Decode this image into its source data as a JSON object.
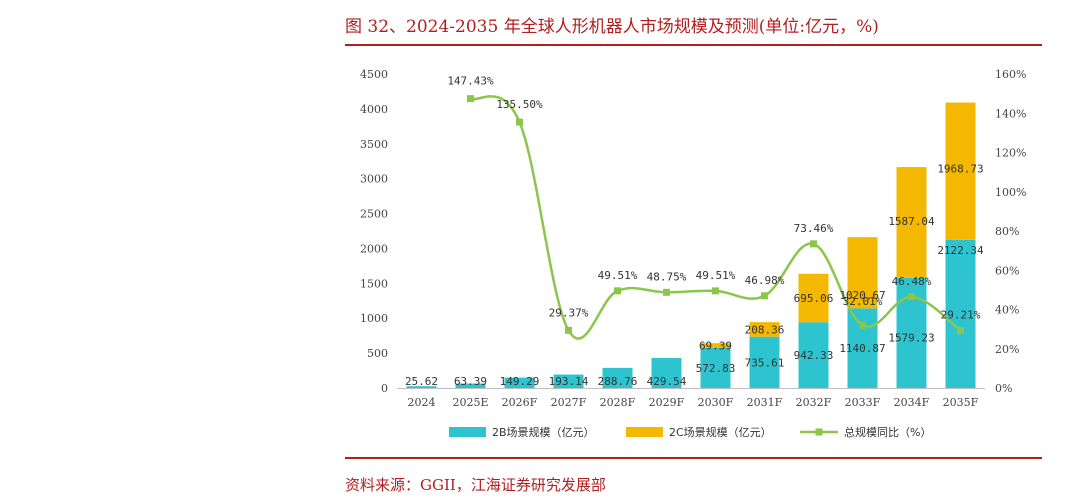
{
  "figure": {
    "title": "图 32、2024-2035 年全球人形机器人市场规模及预测(单位:亿元，%)",
    "source": "资料来源：GGII，江海证券研究发展部"
  },
  "chart_data": {
    "type": "bar",
    "stacked": true,
    "categories": [
      "2024",
      "2025E",
      "2026F",
      "2027F",
      "2028F",
      "2029F",
      "2030F",
      "2031F",
      "2032F",
      "2033F",
      "2034F",
      "2035F"
    ],
    "series": [
      {
        "name": "2B场景规模（亿元）",
        "type": "bar",
        "axis": "left",
        "color": "#2ec4cf",
        "values": [
          25.62,
          63.39,
          149.29,
          193.14,
          288.76,
          429.54,
          572.83,
          735.61,
          942.33,
          1140.87,
          1579.23,
          2122.34
        ],
        "labels": [
          "25.62",
          "63.39",
          "149.29",
          "193.14",
          "288.76",
          "429.54",
          "572.83",
          "735.61",
          "942.33",
          "1140.87",
          "1579.23",
          "2122.34"
        ]
      },
      {
        "name": "2C场景规模（亿元）",
        "type": "bar",
        "axis": "left",
        "color": "#f5b800",
        "values": [
          0,
          0,
          0,
          0,
          0,
          0,
          69.39,
          208.36,
          695.06,
          1020.67,
          1587.04,
          1968.73
        ],
        "labels": [
          "",
          "",
          "",
          "",
          "",
          "",
          "69.39",
          "208.36",
          "695.06",
          "1020.67",
          "1587.04",
          "1968.73"
        ]
      },
      {
        "name": "总规模同比（%）",
        "type": "line",
        "axis": "right",
        "color": "#8bc64a",
        "values": [
          null,
          147.43,
          135.5,
          29.37,
          49.51,
          48.75,
          49.51,
          46.98,
          73.46,
          32.01,
          46.48,
          29.21
        ],
        "labels": [
          "",
          "147.43%",
          "135.50%",
          "29.37%",
          "49.51%",
          "48.75%",
          "49.51%",
          "46.98%",
          "73.46%",
          "32.01%",
          "46.48%",
          "29.21%"
        ]
      }
    ],
    "y_left": {
      "min": 0,
      "max": 4500,
      "ticks": [
        "0",
        "500",
        "1000",
        "1500",
        "2000",
        "2500",
        "3000",
        "3500",
        "4000",
        "4500"
      ]
    },
    "y_right": {
      "min": 0,
      "max": 160,
      "ticks": [
        "0%",
        "20%",
        "40%",
        "60%",
        "80%",
        "100%",
        "120%",
        "140%",
        "160%"
      ]
    },
    "grid": false,
    "legend_position": "bottom"
  }
}
